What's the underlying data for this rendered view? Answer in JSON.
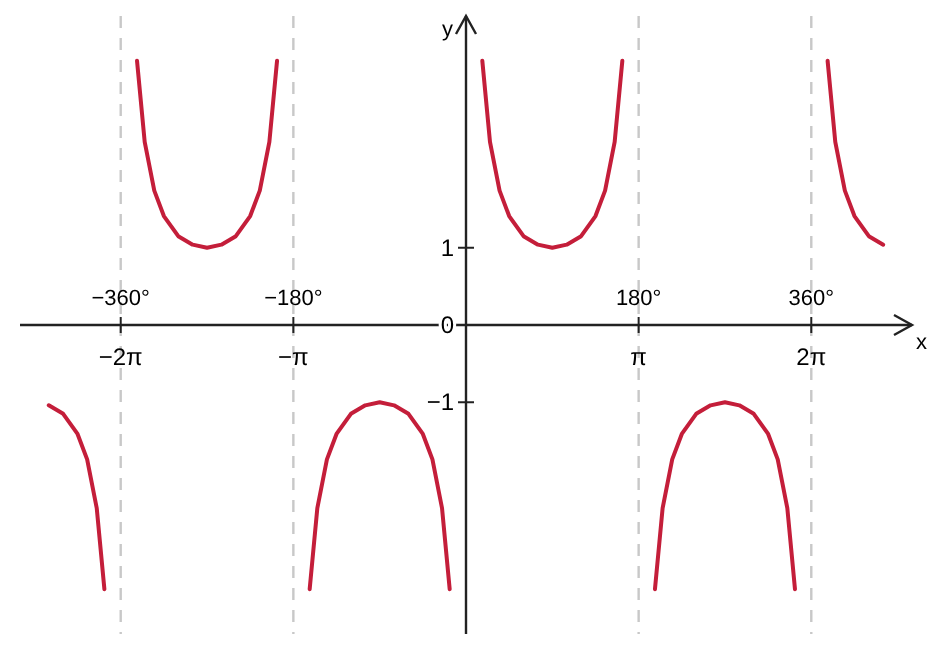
{
  "chart_data": {
    "type": "line",
    "xlabel": "x",
    "ylabel": "y",
    "xlim": [
      -465,
      465
    ],
    "ylim": [
      -4,
      4
    ],
    "x2lim": [
      -8.116,
      8.116
    ],
    "x2ticks": [
      {
        "value": -6.2832,
        "label": "−2π"
      },
      {
        "value": -3.1416,
        "label": "−π"
      },
      {
        "value": 3.1416,
        "label": "π"
      },
      {
        "value": 6.2832,
        "label": "2π"
      }
    ],
    "xticks": [
      {
        "value": -360,
        "label": "−360°"
      },
      {
        "value": -180,
        "label": "−180°"
      },
      {
        "value": 180,
        "label": "180°"
      },
      {
        "value": 360,
        "label": "360°"
      }
    ],
    "yticks": [
      1,
      0,
      -1
    ],
    "ref_lines": [
      {
        "axis": "x",
        "value": -360,
        "color": "#c8c8c8",
        "line_style": "dashed"
      },
      {
        "axis": "x",
        "value": -180,
        "color": "#c8c8c8",
        "line_style": "dashed"
      },
      {
        "axis": "x",
        "value": 180,
        "color": "#c8c8c8",
        "line_style": "dashed"
      },
      {
        "axis": "x",
        "value": 360,
        "color": "#c8c8c8",
        "line_style": "dashed"
      }
    ],
    "series": [
      {
        "color": "#c41e3a",
        "x": [
          -435,
          -420,
          -405,
          -395,
          -385,
          -377
        ],
        "values": [
          -1.04,
          -1.15,
          -1.41,
          -1.74,
          -2.37,
          -3.42
        ]
      },
      {
        "color": "#c41e3a",
        "x": [
          -343,
          -335,
          -325,
          -315,
          -300,
          -285,
          -270,
          -255,
          -240,
          -225,
          -215,
          -205,
          -197
        ],
        "values": [
          3.42,
          2.37,
          1.74,
          1.41,
          1.15,
          1.04,
          1,
          1.04,
          1.15,
          1.41,
          1.74,
          2.37,
          3.42
        ]
      },
      {
        "color": "#c41e3a",
        "x": [
          -163,
          -155,
          -145,
          -135,
          -120,
          -105,
          -90,
          -75,
          -60,
          -45,
          -35,
          -25,
          -17
        ],
        "values": [
          -3.42,
          -2.37,
          -1.74,
          -1.41,
          -1.15,
          -1.04,
          -1,
          -1.04,
          -1.15,
          -1.41,
          -1.74,
          -2.37,
          -3.42
        ]
      },
      {
        "color": "#c41e3a",
        "x": [
          17,
          25,
          35,
          45,
          60,
          75,
          90,
          105,
          120,
          135,
          145,
          155,
          163
        ],
        "values": [
          3.42,
          2.37,
          1.74,
          1.41,
          1.15,
          1.04,
          1,
          1.04,
          1.15,
          1.41,
          1.74,
          2.37,
          3.42
        ]
      },
      {
        "color": "#c41e3a",
        "x": [
          197,
          205,
          215,
          225,
          240,
          255,
          270,
          285,
          300,
          315,
          325,
          335,
          343
        ],
        "values": [
          -3.42,
          -2.37,
          -1.74,
          -1.41,
          -1.15,
          -1.04,
          -1,
          -1.04,
          -1.15,
          -1.41,
          -1.74,
          -2.37,
          -3.42
        ]
      },
      {
        "color": "#c41e3a",
        "x": [
          377,
          385,
          395,
          405,
          420,
          435
        ],
        "values": [
          3.42,
          2.37,
          1.74,
          1.41,
          1.15,
          1.04
        ]
      }
    ]
  }
}
